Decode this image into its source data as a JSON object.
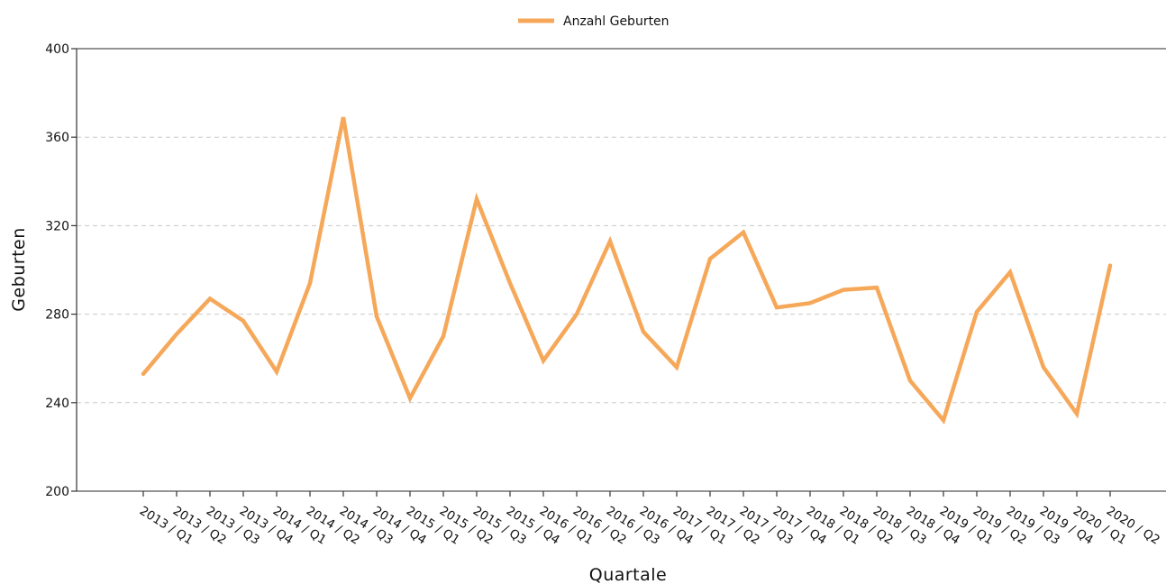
{
  "chart_data": {
    "type": "line",
    "title": "",
    "xlabel": "Quartale",
    "ylabel": "Geburten",
    "ylim": [
      200,
      400
    ],
    "yticks": [
      200,
      240,
      280,
      320,
      360,
      400
    ],
    "grid": "horizontal dashed",
    "legend_position": "top-center",
    "categories": [
      "2013 / Q1",
      "2013 / Q2",
      "2013 / Q3",
      "2013 / Q4",
      "2014 / Q1",
      "2014 / Q2",
      "2014 / Q3",
      "2014 / Q4",
      "2015 / Q1",
      "2015 / Q2",
      "2015 / Q3",
      "2015 / Q4",
      "2016 / Q1",
      "2016 / Q2",
      "2016 / Q3",
      "2016 / Q4",
      "2017 / Q1",
      "2017 / Q2",
      "2017 / Q3",
      "2017 / Q4",
      "2018 / Q1",
      "2018 / Q2",
      "2018 / Q3",
      "2018 / Q4",
      "2019 / Q1",
      "2019 / Q2",
      "2019 / Q3",
      "2019 / Q4",
      "2020 / Q1",
      "2020 / Q2"
    ],
    "series": [
      {
        "name": "Anzahl Geburten",
        "color": "#f6a85a",
        "values": [
          253,
          271,
          287,
          277,
          254,
          294,
          369,
          279,
          242,
          270,
          332,
          294,
          259,
          280,
          313,
          272,
          256,
          305,
          317,
          283,
          285,
          291,
          292,
          250,
          232,
          281,
          299,
          256,
          235,
          302
        ]
      }
    ]
  }
}
